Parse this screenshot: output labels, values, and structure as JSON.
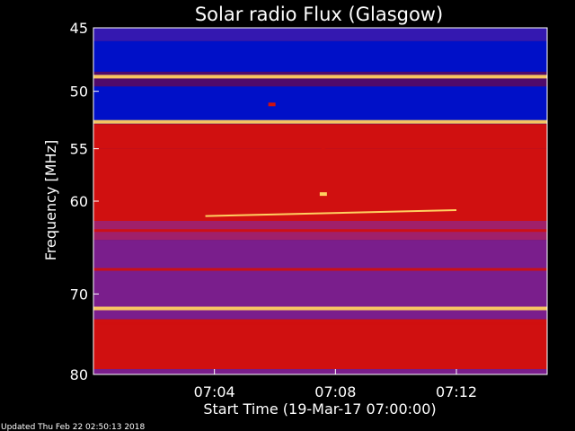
{
  "chart_data": {
    "type": "heatmap",
    "title": "Solar radio Flux (Glasgow)",
    "xlabel": "Start Time (19-Mar-17 07:00:00)",
    "ylabel": "Frequency [MHz]",
    "x_unit": "minutes",
    "xlim": [
      0,
      15
    ],
    "ylim": [
      45,
      80
    ],
    "x_ticks": [
      {
        "value": 4,
        "label": "07:04"
      },
      {
        "value": 8,
        "label": "07:08"
      },
      {
        "value": 12,
        "label": "07:12"
      }
    ],
    "y_ticks": [
      {
        "value": 45,
        "label": "45"
      },
      {
        "value": 50,
        "label": "50"
      },
      {
        "value": 55,
        "label": "55"
      },
      {
        "value": 60,
        "label": "60"
      },
      {
        "value": 70,
        "label": "70"
      },
      {
        "value": 80,
        "label": "80"
      }
    ],
    "colors": {
      "low": "#0010c8",
      "mid": "#7a1e8c",
      "high": "#d01010",
      "peak": "#ffd060",
      "background": "#000000",
      "axis": "#ffffff"
    },
    "background_regions": [
      {
        "from": 45.0,
        "to": 46.0,
        "level": "low-mid"
      },
      {
        "from": 46.0,
        "to": 48.4,
        "level": "low"
      },
      {
        "from": 49.6,
        "to": 52.6,
        "level": "low"
      },
      {
        "from": 52.8,
        "to": 55.0,
        "level": "high"
      },
      {
        "from": 55.0,
        "to": 62.0,
        "level": "high"
      },
      {
        "from": 62.0,
        "to": 64.0,
        "level": "mid-high"
      },
      {
        "from": 64.0,
        "to": 73.0,
        "level": "mid"
      },
      {
        "from": 73.0,
        "to": 79.3,
        "level": "high"
      },
      {
        "from": 79.3,
        "to": 80.0,
        "level": "mid"
      }
    ],
    "horizontal_bands": [
      {
        "freq": 48.8,
        "level": "peak"
      },
      {
        "freq": 52.6,
        "level": "peak"
      },
      {
        "freq": 63.0,
        "level": "high"
      },
      {
        "freq": 67.2,
        "level": "high"
      },
      {
        "freq": 71.7,
        "level": "peak"
      },
      {
        "freq": 73.5,
        "level": "high"
      }
    ],
    "features": [
      {
        "kind": "drifting_burst",
        "start_minute": 3.7,
        "end_minute": 12.0,
        "freq_start": 61.5,
        "freq_end": 60.9,
        "level": "peak"
      },
      {
        "kind": "vertical_spike",
        "minute": 7.6,
        "freq_from": 53.0,
        "freq_to": 60.0,
        "level": "high"
      },
      {
        "kind": "spot",
        "minute": 7.6,
        "freq": 59.3,
        "level": "peak"
      },
      {
        "kind": "spot",
        "minute": 5.9,
        "freq": 51.1,
        "level": "high"
      }
    ]
  },
  "footer": {
    "updated_text": "Updated Thu Feb 22 02:50:13 2018"
  }
}
